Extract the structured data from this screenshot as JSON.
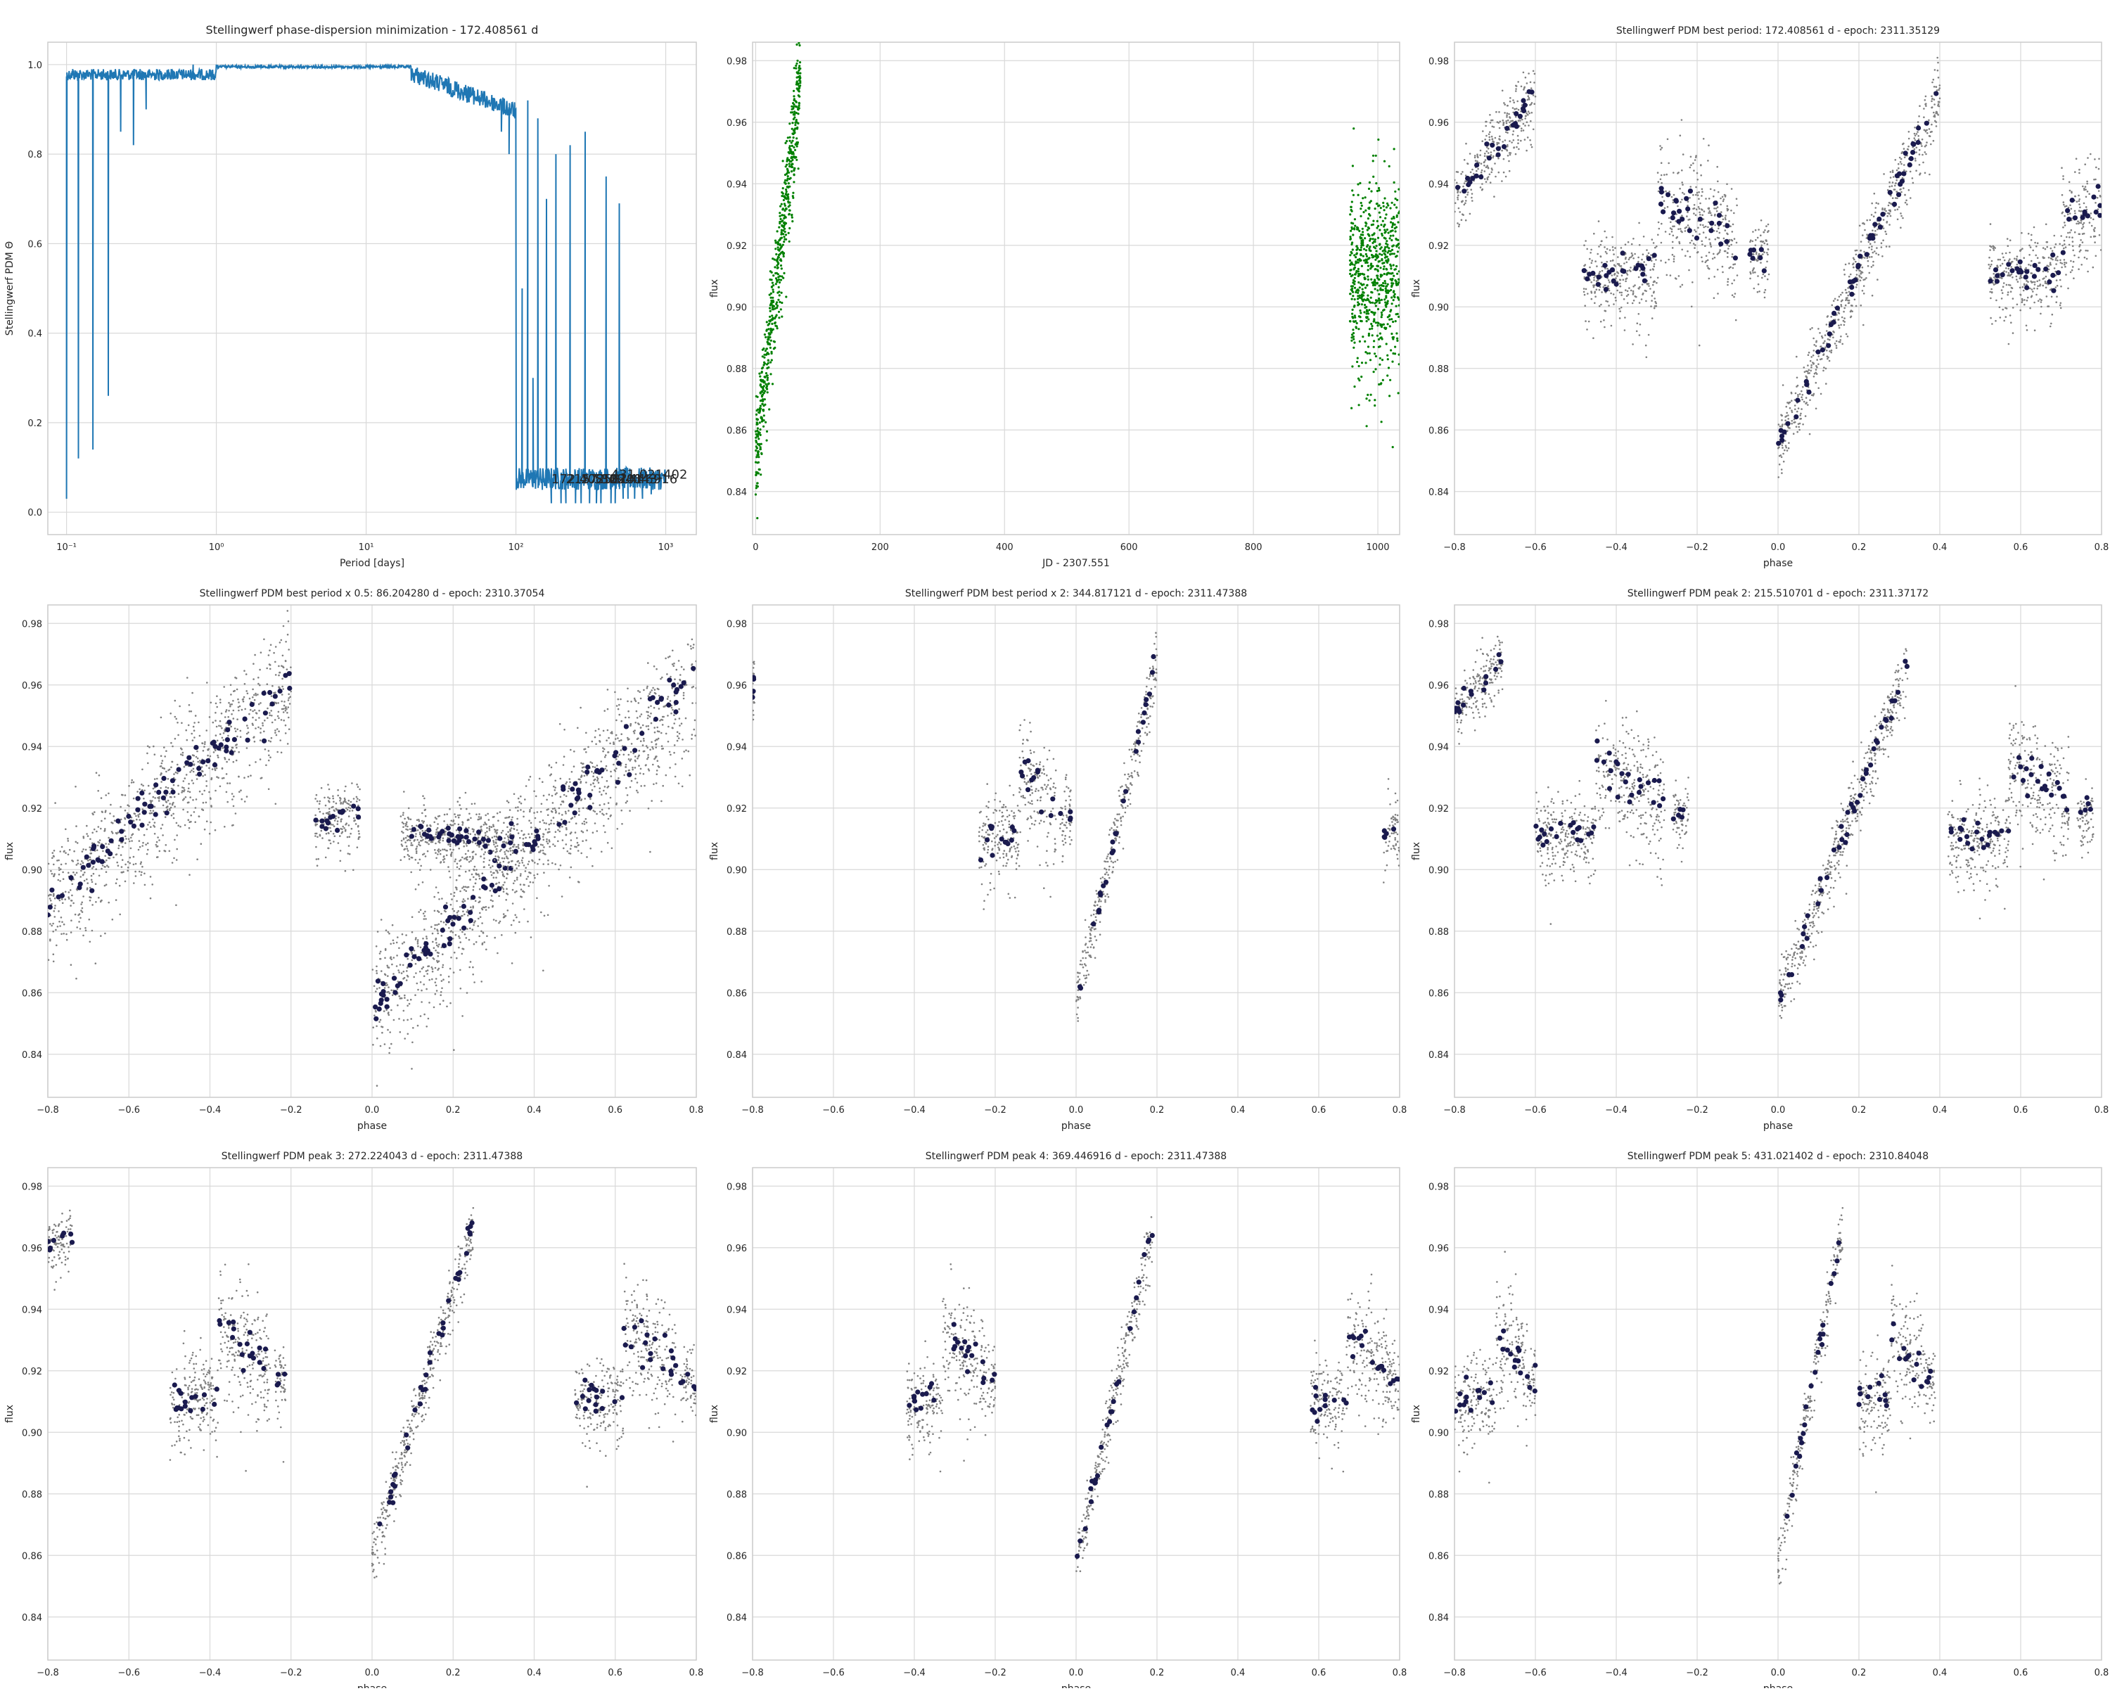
{
  "figure": {
    "background": "#ffffff",
    "grid_color": "#d9d9d9"
  },
  "chart_data": [
    {
      "id": "pdm",
      "type": "line",
      "title": "Stellingwerf phase-dispersion minimization - 172.408561 d",
      "xlabel": "Period [days]",
      "ylabel": "Stellingwerf PDM Θ",
      "xscale": "log",
      "xlim": [
        0.075,
        1600
      ],
      "ylim": [
        -0.05,
        1.05
      ],
      "xticks": [
        0.1,
        1,
        10,
        100,
        1000
      ],
      "xtick_labels": [
        "10⁻¹",
        "10⁰",
        "10¹",
        "10²",
        "10³"
      ],
      "yticks": [
        0.0,
        0.2,
        0.4,
        0.6,
        0.8,
        1.0
      ],
      "ytick_labels": [
        "0.0",
        "0.2",
        "0.4",
        "0.6",
        "0.8",
        "1.0"
      ],
      "grid": true,
      "color": "#1f77b4",
      "series": [
        {
          "x": [
            0.1,
            0.11,
            0.12,
            0.13,
            0.15,
            0.17,
            0.19,
            0.21,
            0.23,
            0.25,
            0.28,
            0.31,
            0.34,
            0.4,
            0.5,
            0.7,
            1.0,
            2,
            5,
            10,
            20,
            30,
            40,
            50,
            60,
            70,
            80,
            90,
            100,
            110,
            120,
            130,
            140,
            150,
            160,
            172.4,
            185,
            200,
            215.5,
            230,
            250,
            272.2,
            290,
            310,
            344.8,
            369.4,
            400,
            431.0,
            460,
            490,
            520,
            560,
            620,
            700,
            800,
            900,
            1000
          ],
          "y": [
            0.03,
            0.99,
            0.12,
            0.98,
            0.14,
            0.97,
            0.26,
            0.97,
            0.85,
            0.98,
            0.82,
            0.99,
            0.9,
            0.99,
            0.99,
            1.0,
            1.0,
            1.0,
            1.0,
            1.0,
            0.98,
            0.97,
            0.96,
            0.95,
            0.93,
            0.9,
            0.85,
            0.8,
            0.75,
            0.5,
            0.92,
            0.3,
            0.88,
            0.05,
            0.7,
            0.02,
            0.8,
            0.02,
            0.02,
            0.82,
            0.02,
            0.02,
            0.85,
            0.02,
            0.02,
            0.02,
            0.75,
            0.02,
            0.02,
            0.69,
            0.03,
            0.03,
            0.03,
            0.03,
            0.04,
            0.05,
            0.065
          ]
        }
      ],
      "annotations": [
        {
          "x": 172.408561,
          "y": 0.065,
          "text": "172.408561"
        },
        {
          "x": 215.510701,
          "y": 0.065,
          "text": "215.510701"
        },
        {
          "x": 272.224043,
          "y": 0.065,
          "text": "272.224043"
        },
        {
          "x": 369.446916,
          "y": 0.065,
          "text": "369.446916"
        },
        {
          "x": 431.021402,
          "y": 0.075,
          "text": "431.021402"
        }
      ]
    },
    {
      "id": "lc",
      "type": "scatter",
      "title": "",
      "xlabel": "JD - 2307.551",
      "ylabel": "flux",
      "xlim": [
        -5,
        1035
      ],
      "ylim": [
        0.826,
        0.986
      ],
      "xticks": [
        0,
        200,
        400,
        600,
        800,
        1000
      ],
      "xtick_labels": [
        "0",
        "200",
        "400",
        "600",
        "800",
        "1000"
      ],
      "yticks": [
        0.84,
        0.86,
        0.88,
        0.9,
        0.92,
        0.94,
        0.96,
        0.98
      ],
      "ytick_labels": [
        "0.84",
        "0.86",
        "0.88",
        "0.90",
        "0.92",
        "0.94",
        "0.96",
        "0.98"
      ],
      "grid": true,
      "color": "#008000",
      "segments": [
        {
          "x_start": 0,
          "x_end": 72,
          "y_start": 0.852,
          "y_end": 0.975,
          "scatter": 0.018
        },
        {
          "x_start": 955,
          "x_end": 1035,
          "y_start": 0.912,
          "y_end": 0.912,
          "scatter": 0.03
        }
      ]
    },
    {
      "id": "phase_best",
      "type": "scatter",
      "title": "Stellingwerf PDM best period: 172.408561 d - epoch: 2311.35129",
      "xlabel": "phase",
      "ylabel": "flux",
      "period": 172.408561,
      "xlim": [
        -0.8,
        0.8
      ],
      "ylim": [
        0.826,
        0.986
      ],
      "segments": [
        {
          "x_start": 0.0,
          "x_end": 0.4,
          "y_start": 0.855,
          "y_end": 0.97,
          "scatter": 0.012
        },
        {
          "x_start": -0.48,
          "x_end": -0.3,
          "y_start": 0.91,
          "y_end": 0.912,
          "scatter": 0.015
        },
        {
          "x_start": -0.3,
          "x_end": -0.1,
          "y_start": 0.935,
          "y_end": 0.922,
          "scatter": 0.02
        },
        {
          "x_start": -0.07,
          "x_end": -0.02,
          "y_start": 0.918,
          "y_end": 0.918,
          "scatter": 0.012
        },
        {
          "x_start": 0.52,
          "x_end": 0.7,
          "y_start": 0.91,
          "y_end": 0.912,
          "scatter": 0.015
        },
        {
          "x_start": 0.7,
          "x_end": 0.8,
          "y_start": 0.925,
          "y_end": 0.935,
          "scatter": 0.02
        },
        {
          "x_start": -0.8,
          "x_end": -0.6,
          "y_start": 0.935,
          "y_end": 0.97,
          "scatter": 0.012
        }
      ]
    },
    {
      "id": "phase_half",
      "type": "scatter",
      "title": "Stellingwerf PDM best period x 0.5: 86.204280 d - epoch: 2310.37054",
      "xlabel": "phase",
      "ylabel": "flux",
      "period": 86.20428,
      "xlim": [
        -0.8,
        0.8
      ],
      "ylim": [
        0.826,
        0.986
      ],
      "segments": [
        {
          "x_start": -0.8,
          "x_end": -0.2,
          "y_start": 0.89,
          "y_end": 0.962,
          "scatter": 0.022
        },
        {
          "x_start": -0.14,
          "x_end": -0.03,
          "y_start": 0.915,
          "y_end": 0.92,
          "scatter": 0.012
        },
        {
          "x_start": 0.0,
          "x_end": 0.8,
          "y_start": 0.856,
          "y_end": 0.962,
          "scatter": 0.022
        },
        {
          "x_start": 0.07,
          "x_end": 0.35,
          "y_start": 0.912,
          "y_end": 0.91,
          "scatter": 0.01
        }
      ]
    },
    {
      "id": "phase_double",
      "type": "scatter",
      "title": "Stellingwerf PDM best period x 2: 344.817121 d - epoch: 2311.47388",
      "xlabel": "phase",
      "ylabel": "flux",
      "period": 344.817121,
      "xlim": [
        -0.8,
        0.8
      ],
      "ylim": [
        0.826,
        0.986
      ],
      "segments": [
        {
          "x_start": 0.0,
          "x_end": 0.2,
          "y_start": 0.858,
          "y_end": 0.968,
          "scatter": 0.01
        },
        {
          "x_start": -0.24,
          "x_end": -0.14,
          "y_start": 0.91,
          "y_end": 0.912,
          "scatter": 0.015
        },
        {
          "x_start": -0.14,
          "x_end": -0.05,
          "y_start": 0.932,
          "y_end": 0.922,
          "scatter": 0.02
        },
        {
          "x_start": -0.04,
          "x_end": -0.01,
          "y_start": 0.918,
          "y_end": 0.918,
          "scatter": 0.012
        },
        {
          "x_start": -0.8,
          "x_end": -0.795,
          "y_start": 0.96,
          "y_end": 0.962,
          "scatter": 0.01
        },
        {
          "x_start": 0.76,
          "x_end": 0.8,
          "y_start": 0.911,
          "y_end": 0.913,
          "scatter": 0.012
        }
      ]
    },
    {
      "id": "phase_peak2",
      "type": "scatter",
      "title": "Stellingwerf PDM peak 2: 215.510701 d - epoch: 2311.37172",
      "xlabel": "phase",
      "ylabel": "flux",
      "period": 215.510701,
      "xlim": [
        -0.8,
        0.8
      ],
      "ylim": [
        0.826,
        0.986
      ],
      "segments": [
        {
          "x_start": 0.0,
          "x_end": 0.32,
          "y_start": 0.857,
          "y_end": 0.966,
          "scatter": 0.011
        },
        {
          "x_start": -0.6,
          "x_end": -0.45,
          "y_start": 0.91,
          "y_end": 0.912,
          "scatter": 0.015
        },
        {
          "x_start": -0.45,
          "x_end": -0.28,
          "y_start": 0.935,
          "y_end": 0.922,
          "scatter": 0.02
        },
        {
          "x_start": -0.26,
          "x_end": -0.22,
          "y_start": 0.918,
          "y_end": 0.918,
          "scatter": 0.012
        },
        {
          "x_start": -0.8,
          "x_end": -0.68,
          "y_start": 0.952,
          "y_end": 0.968,
          "scatter": 0.01
        },
        {
          "x_start": 0.42,
          "x_end": 0.57,
          "y_start": 0.91,
          "y_end": 0.912,
          "scatter": 0.015
        },
        {
          "x_start": 0.57,
          "x_end": 0.72,
          "y_start": 0.935,
          "y_end": 0.922,
          "scatter": 0.02
        },
        {
          "x_start": 0.74,
          "x_end": 0.78,
          "y_start": 0.918,
          "y_end": 0.918,
          "scatter": 0.012
        }
      ]
    },
    {
      "id": "phase_peak3",
      "type": "scatter",
      "title": "Stellingwerf PDM peak 3: 272.224043 d - epoch: 2311.47388",
      "xlabel": "phase",
      "ylabel": "flux",
      "period": 272.224043,
      "xlim": [
        -0.8,
        0.8
      ],
      "ylim": [
        0.826,
        0.986
      ],
      "segments": [
        {
          "x_start": 0.0,
          "x_end": 0.25,
          "y_start": 0.86,
          "y_end": 0.968,
          "scatter": 0.01
        },
        {
          "x_start": -0.5,
          "x_end": -0.38,
          "y_start": 0.91,
          "y_end": 0.912,
          "scatter": 0.015
        },
        {
          "x_start": -0.38,
          "x_end": -0.25,
          "y_start": 0.935,
          "y_end": 0.922,
          "scatter": 0.02
        },
        {
          "x_start": -0.24,
          "x_end": -0.21,
          "y_start": 0.917,
          "y_end": 0.917,
          "scatter": 0.012
        },
        {
          "x_start": -0.8,
          "x_end": -0.74,
          "y_start": 0.96,
          "y_end": 0.965,
          "scatter": 0.01
        },
        {
          "x_start": 0.5,
          "x_end": 0.62,
          "y_start": 0.91,
          "y_end": 0.912,
          "scatter": 0.015
        },
        {
          "x_start": 0.62,
          "x_end": 0.75,
          "y_start": 0.935,
          "y_end": 0.922,
          "scatter": 0.02
        },
        {
          "x_start": 0.76,
          "x_end": 0.8,
          "y_start": 0.917,
          "y_end": 0.917,
          "scatter": 0.012
        }
      ]
    },
    {
      "id": "phase_peak4",
      "type": "scatter",
      "title": "Stellingwerf PDM peak 4: 369.446916 d - epoch: 2311.47388",
      "xlabel": "phase",
      "ylabel": "flux",
      "period": 369.446916,
      "xlim": [
        -0.8,
        0.8
      ],
      "ylim": [
        0.826,
        0.986
      ],
      "segments": [
        {
          "x_start": 0.0,
          "x_end": 0.19,
          "y_start": 0.858,
          "y_end": 0.966,
          "scatter": 0.01
        },
        {
          "x_start": -0.42,
          "x_end": -0.33,
          "y_start": 0.91,
          "y_end": 0.912,
          "scatter": 0.015
        },
        {
          "x_start": -0.33,
          "x_end": -0.23,
          "y_start": 0.932,
          "y_end": 0.922,
          "scatter": 0.02
        },
        {
          "x_start": -0.23,
          "x_end": -0.2,
          "y_start": 0.918,
          "y_end": 0.918,
          "scatter": 0.012
        },
        {
          "x_start": 0.58,
          "x_end": 0.67,
          "y_start": 0.91,
          "y_end": 0.912,
          "scatter": 0.015
        },
        {
          "x_start": 0.67,
          "x_end": 0.77,
          "y_start": 0.932,
          "y_end": 0.922,
          "scatter": 0.02
        },
        {
          "x_start": 0.77,
          "x_end": 0.8,
          "y_start": 0.918,
          "y_end": 0.918,
          "scatter": 0.012
        }
      ]
    },
    {
      "id": "phase_peak5",
      "type": "scatter",
      "title": "Stellingwerf PDM peak 5: 431.021402 d - epoch: 2310.84048",
      "xlabel": "phase",
      "ylabel": "flux",
      "period": 431.021402,
      "xlim": [
        -0.8,
        0.8
      ],
      "ylim": [
        0.826,
        0.986
      ],
      "segments": [
        {
          "x_start": 0.0,
          "x_end": 0.16,
          "y_start": 0.858,
          "y_end": 0.968,
          "scatter": 0.01
        },
        {
          "x_start": -0.8,
          "x_end": -0.7,
          "y_start": 0.91,
          "y_end": 0.912,
          "scatter": 0.015
        },
        {
          "x_start": -0.7,
          "x_end": -0.62,
          "y_start": 0.932,
          "y_end": 0.922,
          "scatter": 0.02
        },
        {
          "x_start": -0.62,
          "x_end": -0.6,
          "y_start": 0.918,
          "y_end": 0.918,
          "scatter": 0.012
        },
        {
          "x_start": 0.2,
          "x_end": 0.28,
          "y_start": 0.91,
          "y_end": 0.912,
          "scatter": 0.015
        },
        {
          "x_start": 0.28,
          "x_end": 0.36,
          "y_start": 0.932,
          "y_end": 0.922,
          "scatter": 0.02
        },
        {
          "x_start": 0.36,
          "x_end": 0.39,
          "y_start": 0.918,
          "y_end": 0.918,
          "scatter": 0.012
        }
      ]
    }
  ],
  "phase_style": {
    "xticks": [
      -0.8,
      -0.6,
      -0.4,
      -0.2,
      0.0,
      0.2,
      0.4,
      0.6,
      0.8
    ],
    "xtick_labels": [
      "−0.8",
      "−0.6",
      "−0.4",
      "−0.2",
      "0.0",
      "0.2",
      "0.4",
      "0.6",
      "0.8"
    ],
    "yticks": [
      0.84,
      0.86,
      0.88,
      0.9,
      0.92,
      0.94,
      0.96,
      0.98
    ],
    "ytick_labels": [
      "0.84",
      "0.86",
      "0.88",
      "0.90",
      "0.92",
      "0.94",
      "0.96",
      "0.98"
    ],
    "raw_color": "#808080",
    "binned_color": "#1a1a4e"
  }
}
